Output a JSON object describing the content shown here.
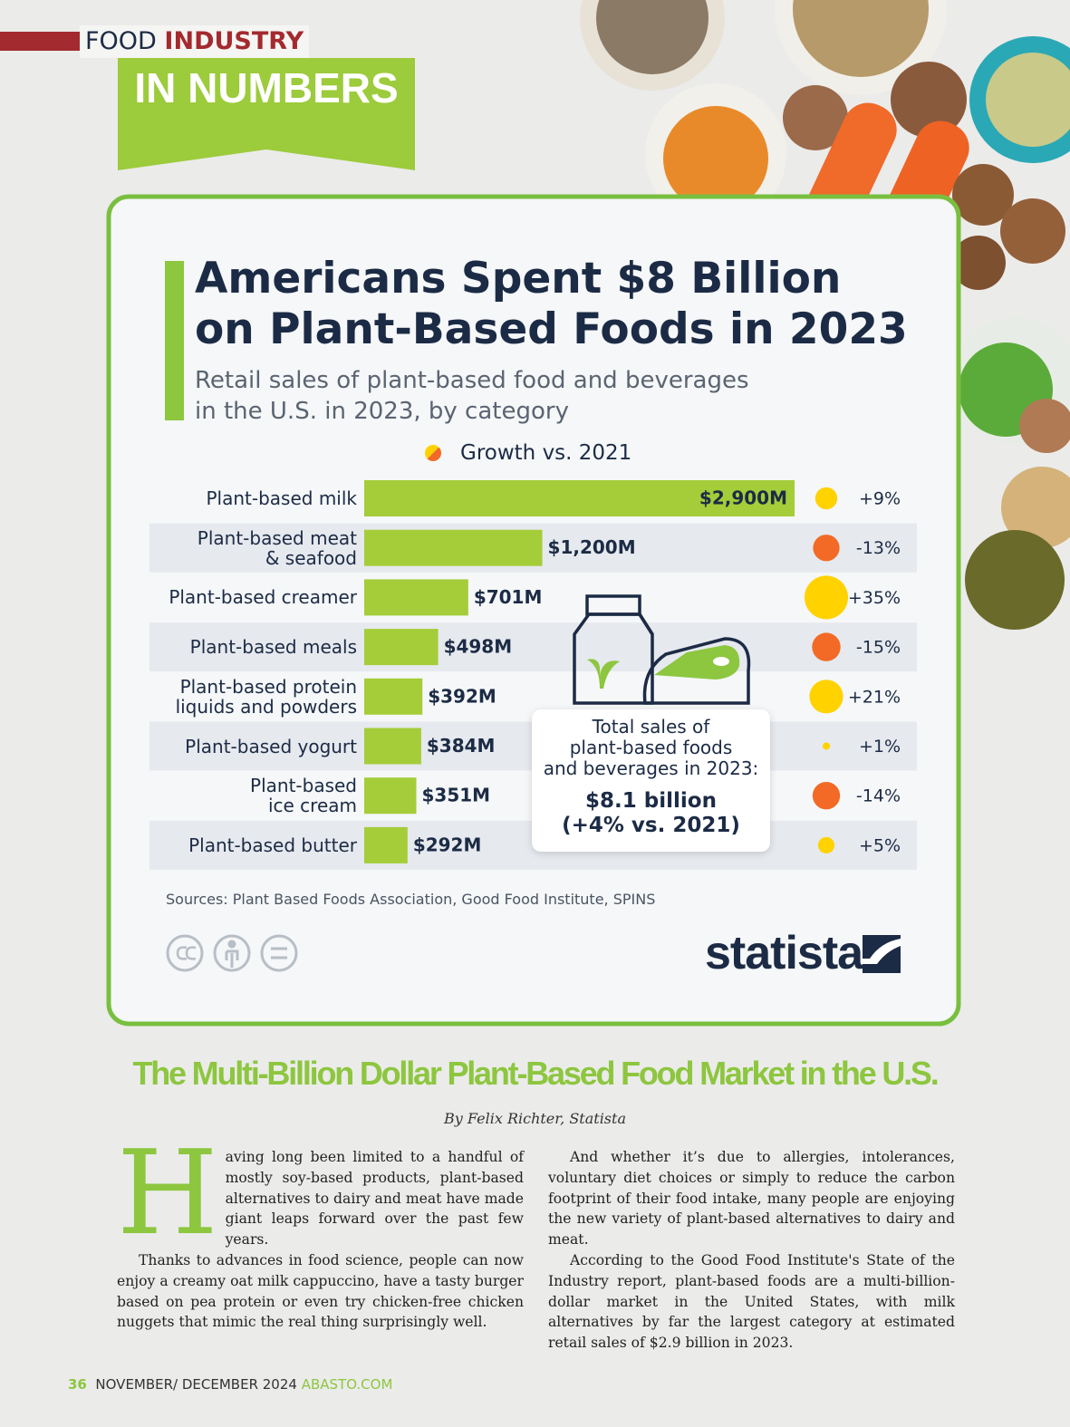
{
  "header": {
    "kicker": "FOOD",
    "kicker_accent": "INDUSTRY",
    "banner": "IN NUMBERS"
  },
  "chart_data": {
    "type": "bar",
    "title": "Americans Spent $8 Billion\non Plant-Based Foods in 2023",
    "subtitle": "Retail sales of plant-based food and beverages\nin the U.S. in 2023, by category",
    "legend_title": "Growth vs. 2021",
    "categories": [
      "Plant-based milk",
      "Plant-based meat\n& seafood",
      "Plant-based creamer",
      "Plant-based meals",
      "Plant-based protein\nliquids and powders",
      "Plant-based yogurt",
      "Plant-based\nice cream",
      "Plant-based butter"
    ],
    "values": [
      2900,
      1200,
      701,
      498,
      392,
      384,
      351,
      292
    ],
    "value_labels": [
      "$2,900M",
      "$1,200M",
      "$701M",
      "$498M",
      "$392M",
      "$384M",
      "$351M",
      "$292M"
    ],
    "color": "#a4cd39",
    "growth": [
      9,
      -13,
      35,
      -15,
      21,
      1,
      -14,
      5
    ],
    "growth_labels": [
      "+9%",
      "-13%",
      "+35%",
      "-15%",
      "+21%",
      "+1%",
      "-14%",
      "+5%"
    ],
    "positive_color": "#ffd200",
    "negative_color": "#f26a25",
    "callout": {
      "text": "Total sales of\nplant-based foods\nand beverages in 2023:",
      "value": "$8.1 billion\n(+4% vs. 2021)"
    },
    "source": "Sources: Plant Based Foods Association, Good Food Institute, SPINS",
    "logo": "statista"
  },
  "article": {
    "title": "The Multi-Billion Dollar Plant-Based Food Market in the U.S.",
    "byline": "By Felix Richter, Statista",
    "paragraphs": [
      "Having long been limited to a handful of mostly soy-based products, plant-based alternatives to dairy and meat have made giant leaps forward over the past few years.",
      "Thanks to advances in food science, people can now enjoy a creamy oat milk cappuccino, have a tasty burger based on pea protein or even try chicken-free chicken nuggets that mimic the real thing surprisingly well.",
      "And whether it’s due to allergies, intolerances, voluntary diet choices or simply to reduce the carbon footprint of their food intake, many people are enjoying the new variety of plant-based alternatives to dairy and meat.",
      "According to the Good Food Institute's State of the Industry report, plant-based foods are a multi-billion-dollar market in the United States, with milk alternatives by far the largest category at estimated retail sales of $2.9 billion in 2023."
    ]
  },
  "footer": {
    "page": "36",
    "issue": "NOVEMBER/ DECEMBER 2024",
    "site": "ABASTO.COM"
  }
}
